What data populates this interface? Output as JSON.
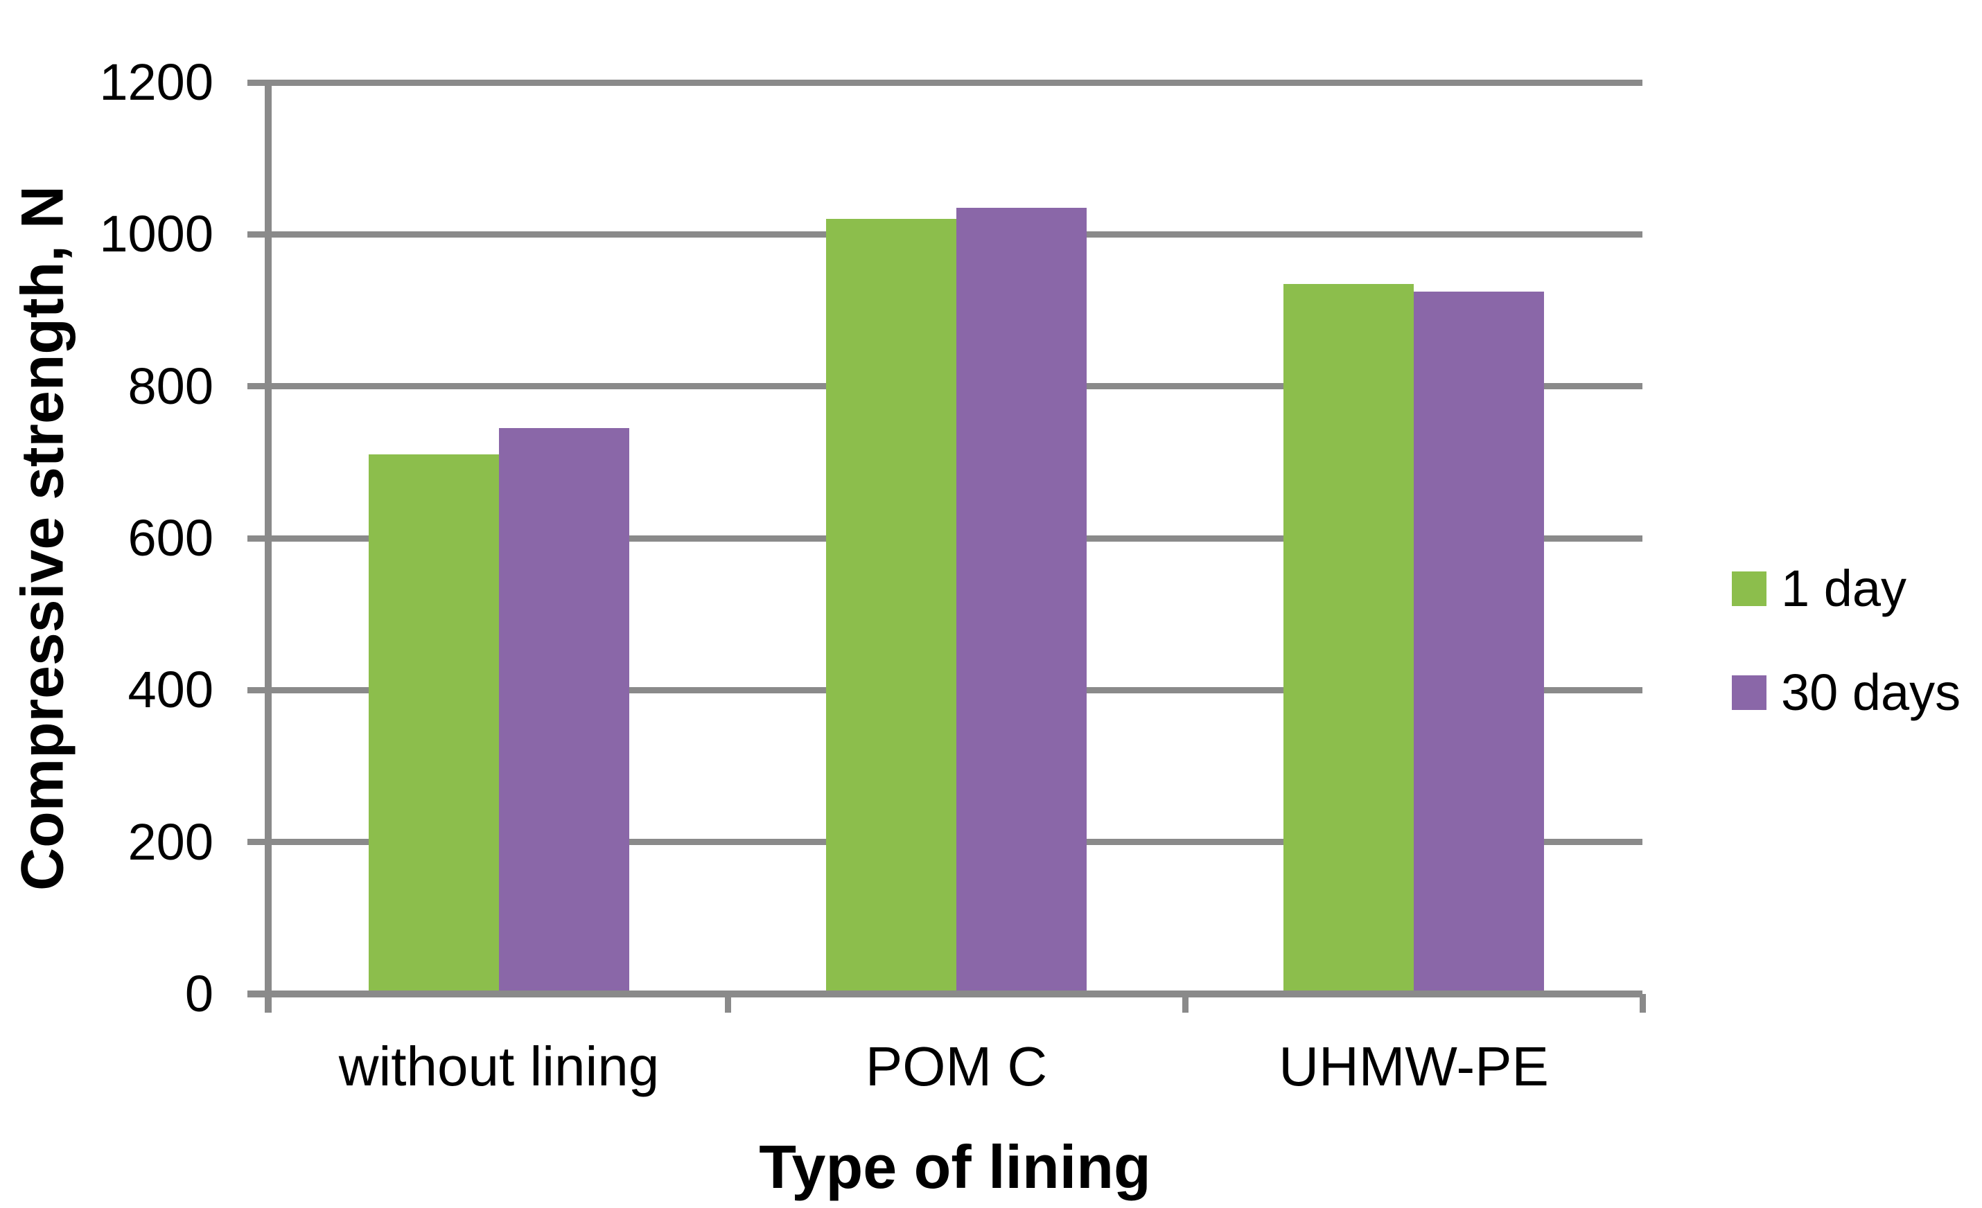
{
  "chart_data": {
    "type": "bar",
    "title": "",
    "xlabel": "Type of lining",
    "ylabel": "Compressive strength, N",
    "categories": [
      "without lining",
      "POM C",
      "UHMW-PE"
    ],
    "series": [
      {
        "name": "1 day",
        "color": "#8CBE4C",
        "values": [
          710,
          1020,
          935
        ]
      },
      {
        "name": "30 days",
        "color": "#8A67A8",
        "values": [
          745,
          1035,
          925
        ]
      }
    ],
    "ylim": [
      0,
      1200
    ],
    "yticks": [
      0,
      200,
      400,
      600,
      800,
      1000,
      1200
    ],
    "grid": true,
    "legend_position": "right",
    "axis_color": "#8A8A8A",
    "text_color": "#000000"
  }
}
